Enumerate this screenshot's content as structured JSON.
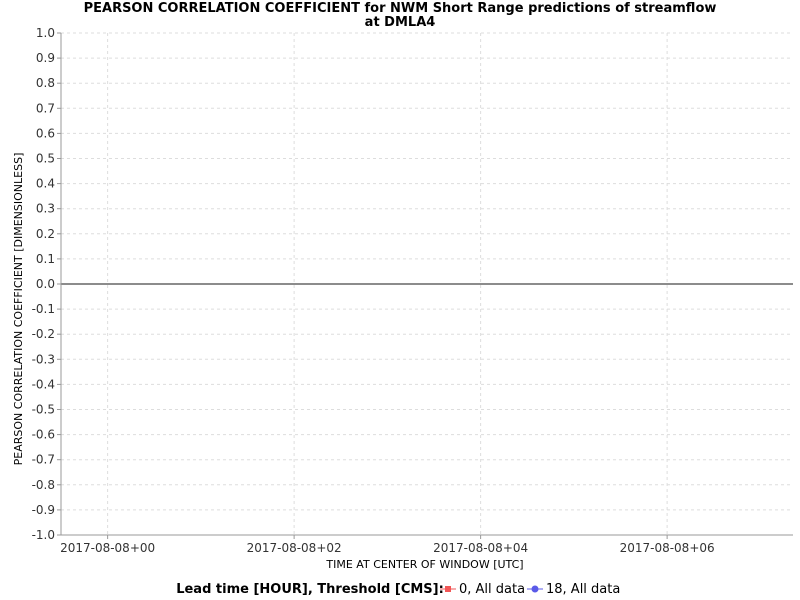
{
  "chart_data": {
    "type": "line",
    "title_line1": "PEARSON CORRELATION COEFFICIENT for NWM Short Range predictions of streamflow",
    "title_line2": "at DMLA4",
    "xlabel": "TIME AT CENTER OF WINDOW [UTC]",
    "ylabel": "PEARSON CORRELATION COEFFICIENT [DIMENSIONLESS]",
    "ylim": [
      -1.0,
      1.0
    ],
    "yticks": [
      "1.0",
      "0.9",
      "0.8",
      "0.7",
      "0.6",
      "0.5",
      "0.4",
      "0.3",
      "0.2",
      "0.1",
      "0.0",
      "-0.1",
      "-0.2",
      "-0.3",
      "-0.4",
      "-0.5",
      "-0.6",
      "-0.7",
      "-0.8",
      "-0.9",
      "-1.0"
    ],
    "xticks": [
      "2017-08-08+00",
      "2017-08-08+02",
      "2017-08-08+04",
      "2017-08-08+06"
    ],
    "xlim_hours": [
      -0.5,
      7.35
    ],
    "grid": true,
    "zero_line": 0.0,
    "legend": {
      "title": "Lead time [HOUR], Threshold [CMS]:",
      "placement": "bottom",
      "entries": [
        {
          "label": "0, All data",
          "color": "#f25656",
          "marker": "square"
        },
        {
          "label": "18, All data",
          "color": "#5a5ae8",
          "marker": "circle"
        }
      ]
    },
    "series": [
      {
        "name": "0, All data",
        "x": [],
        "y": []
      },
      {
        "name": "18, All data",
        "x": [],
        "y": []
      }
    ]
  }
}
